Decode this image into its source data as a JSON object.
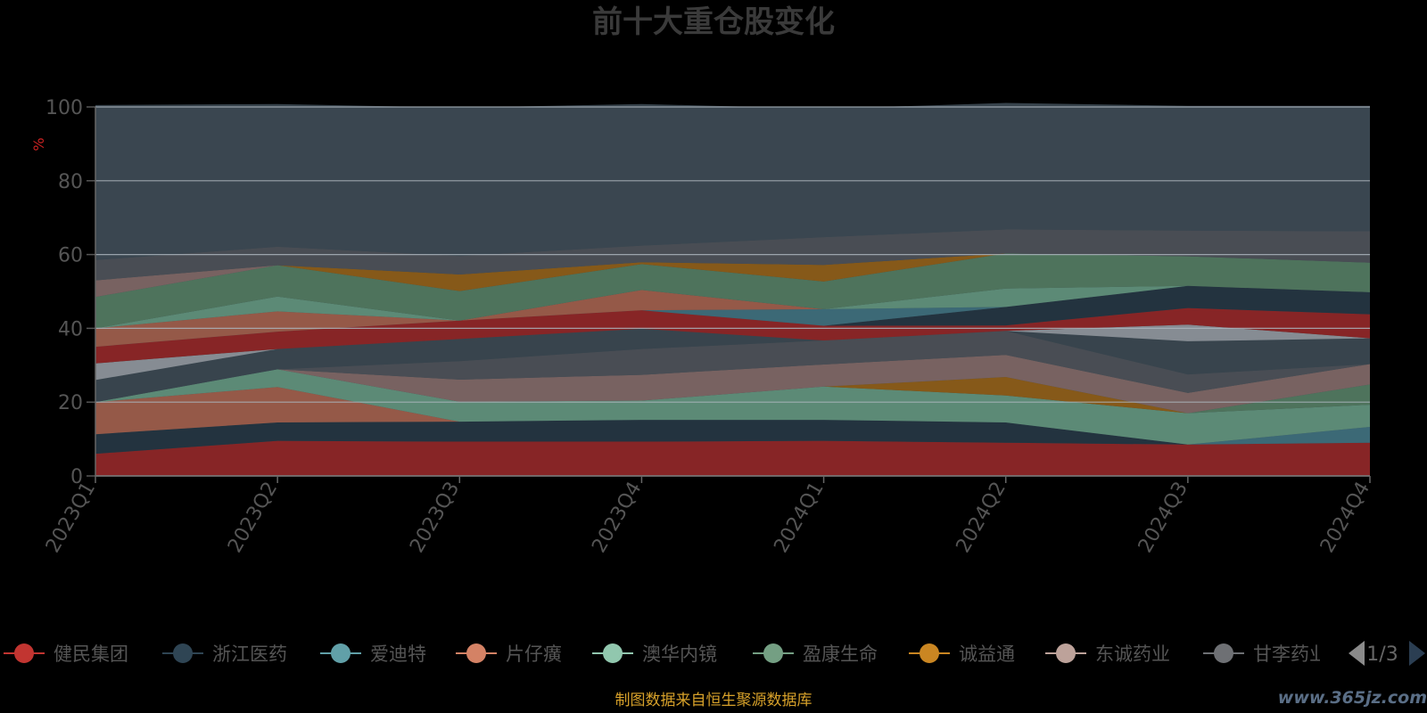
{
  "chart_data": {
    "type": "area",
    "title": "前十大重仓股变化",
    "ylabel": "%",
    "ylim": [
      0,
      100
    ],
    "yticks": [
      "0",
      "20",
      "40",
      "60",
      "80",
      "100"
    ],
    "grid": true,
    "stacked": true,
    "categories": [
      "2023Q1",
      "2023Q2",
      "2023Q3",
      "2023Q4",
      "2024Q1",
      "2024Q2",
      "2024Q3",
      "2024Q4"
    ],
    "series_stack_bottom_to_top": [
      {
        "color": "#8B2424",
        "values": [
          6.0,
          9.5,
          9.3,
          9.3,
          9.5,
          9.0,
          8.5,
          9.0
        ]
      },
      {
        "color": "#22333E",
        "values": [
          5.3,
          5.0,
          5.4,
          5.9,
          5.7,
          5.5,
          0.0,
          0.0
        ]
      },
      {
        "color": "#3C6C78",
        "values": [
          0.0,
          0.0,
          0.0,
          0.0,
          0.0,
          0.0,
          0.0,
          4.3
        ]
      },
      {
        "color": "#9A5B48",
        "values": [
          8.7,
          9.6,
          0.0,
          0.0,
          0.0,
          0.0,
          0.0,
          0.0
        ]
      },
      {
        "color": "#5E8E78",
        "values": [
          0.0,
          4.8,
          5.4,
          5.2,
          9.0,
          7.3,
          8.5,
          6.0
        ]
      },
      {
        "color": "#4F765D",
        "values": [
          0.0,
          0.0,
          0.0,
          0.0,
          0.0,
          0.0,
          0.0,
          5.5
        ]
      },
      {
        "color": "#8A5B16",
        "values": [
          0.0,
          0.0,
          0.0,
          0.0,
          0.0,
          5.0,
          0.0,
          0.0
        ]
      },
      {
        "color": "#7B6462",
        "values": [
          0.0,
          0.0,
          6.0,
          7.0,
          6.0,
          6.0,
          5.5,
          5.5
        ]
      },
      {
        "color": "#4A4E54",
        "values": [
          0.0,
          0.0,
          5.0,
          7.0,
          6.5,
          6.5,
          5.0,
          0.0
        ]
      },
      {
        "color": "#38444D",
        "values": [
          6.0,
          5.5,
          6.0,
          5.5,
          0.0,
          0.0,
          9.0,
          7.0
        ]
      },
      {
        "color": "#8A9097",
        "values": [
          4.5,
          0.0,
          0.0,
          0.0,
          0.0,
          0.0,
          4.5,
          0.0
        ]
      },
      {
        "color": "#8B2424",
        "values": [
          4.5,
          4.7,
          5.0,
          5.0,
          4.0,
          1.5,
          4.5,
          6.5
        ]
      },
      {
        "color": "#22333E",
        "values": [
          0.0,
          0.0,
          0.0,
          0.0,
          0.0,
          5.0,
          6.0,
          6.0
        ]
      },
      {
        "color": "#3C6C78",
        "values": [
          0.0,
          0.0,
          0.0,
          0.0,
          4.5,
          0.0,
          0.0,
          0.0
        ]
      },
      {
        "color": "#9A5B48",
        "values": [
          5.0,
          5.5,
          0.0,
          5.5,
          0.0,
          0.0,
          0.0,
          0.0
        ]
      },
      {
        "color": "#5E8E78",
        "values": [
          0.0,
          4.0,
          0.0,
          0.0,
          0.0,
          5.0,
          0.0,
          0.0
        ]
      },
      {
        "color": "#4F765D",
        "values": [
          8.5,
          8.5,
          8.0,
          7.0,
          7.5,
          9.5,
          8.0,
          8.0
        ]
      },
      {
        "color": "#8A5B16",
        "values": [
          0.0,
          0.0,
          4.5,
          0.5,
          4.5,
          0.0,
          0.0,
          0.0
        ]
      },
      {
        "color": "#7B6462",
        "values": [
          4.5,
          0.0,
          0.0,
          0.0,
          0.0,
          0.0,
          0.0,
          0.0
        ]
      },
      {
        "color": "#4A4E54",
        "values": [
          5.5,
          5.0,
          5.0,
          4.5,
          7.5,
          6.5,
          7.0,
          8.5
        ]
      },
      {
        "color": "#3A4750",
        "values": [
          42.0,
          38.7,
          40.2,
          38.4,
          34.8,
          34.3,
          33.8,
          34.0
        ]
      }
    ]
  },
  "legend": {
    "items": [
      {
        "name": "健民集团",
        "color": "#C23531"
      },
      {
        "name": "浙江医药",
        "color": "#2F4554"
      },
      {
        "name": "爱迪特",
        "color": "#61A0A8"
      },
      {
        "name": "片仔癀",
        "color": "#D48265"
      },
      {
        "name": "澳华内镜",
        "color": "#91C7AE"
      },
      {
        "name": "盈康生命",
        "color": "#749F83"
      },
      {
        "name": "诚益通",
        "color": "#CA8622"
      },
      {
        "name": "东诚药业",
        "color": "#BDA29A"
      },
      {
        "name": "甘李药业",
        "color": "#6E7074"
      }
    ],
    "page_text": "1/3"
  },
  "footer": {
    "source": "制图数据来自恒生聚源数据库",
    "watermark": "www.365jz.com"
  },
  "colors": {
    "background": "#000000",
    "title": "#3A3A3A",
    "axis_label": "#555555",
    "ylabel": "#CC2222",
    "footer": "#D7A12A",
    "watermark": "#5A6E86",
    "legend_text": "#555555"
  }
}
